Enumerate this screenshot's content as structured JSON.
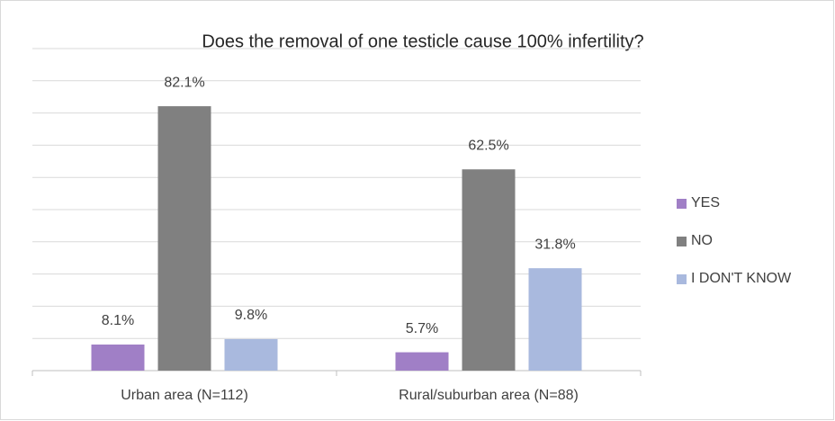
{
  "chart_data": {
    "type": "bar",
    "title": "Does the removal of one testicle cause 100% infertility?",
    "categories": [
      "Urban area (N=112)",
      "Rural/suburban area (N=88)"
    ],
    "series": [
      {
        "name": "YES",
        "color": "#a07fc6",
        "values": [
          8.1,
          5.7
        ],
        "value_labels": [
          "8.1%",
          "5.7%"
        ]
      },
      {
        "name": "NO",
        "color": "#808080",
        "values": [
          82.1,
          62.5
        ],
        "value_labels": [
          "82.1%",
          "62.5%"
        ]
      },
      {
        "name": "I DON'T KNOW",
        "color": "#a9b9de",
        "values": [
          9.8,
          31.8
        ],
        "value_labels": [
          "9.8%",
          "31.8%"
        ]
      }
    ],
    "ylim": [
      0,
      100
    ],
    "yticks": [
      0,
      10,
      20,
      30,
      40,
      50,
      60,
      70,
      80,
      90,
      100
    ],
    "grid": true,
    "legend": "right"
  }
}
